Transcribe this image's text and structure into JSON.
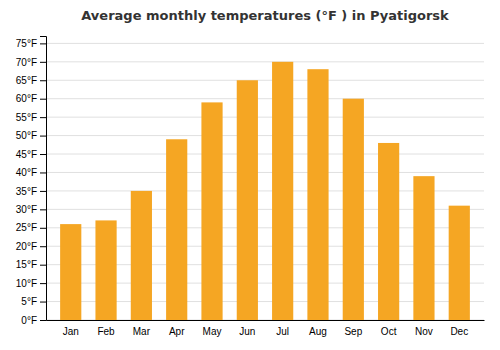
{
  "chart_data": {
    "type": "bar",
    "title": "Average monthly temperatures (°F ) in Pyatigorsk",
    "categories": [
      "Jan",
      "Feb",
      "Mar",
      "Apr",
      "May",
      "Jun",
      "Jul",
      "Aug",
      "Sep",
      "Oct",
      "Nov",
      "Dec"
    ],
    "values": [
      26,
      27,
      35,
      49,
      59,
      65,
      70,
      68,
      60,
      48,
      39,
      31
    ],
    "color": "#F5A623",
    "ylim": [
      0,
      77
    ],
    "yticks": [
      {
        "value": 0,
        "label": "0°F"
      },
      {
        "value": 5,
        "label": "5°F"
      },
      {
        "value": 10,
        "label": "10°F"
      },
      {
        "value": 15,
        "label": "15°F"
      },
      {
        "value": 20,
        "label": "20°F"
      },
      {
        "value": 25,
        "label": "25°F"
      },
      {
        "value": 30,
        "label": "30°F"
      },
      {
        "value": 35,
        "label": "35°F"
      },
      {
        "value": 40,
        "label": "40°F"
      },
      {
        "value": 45,
        "label": "45°F"
      },
      {
        "value": 50,
        "label": "50°F"
      },
      {
        "value": 55,
        "label": "55°F"
      },
      {
        "value": 60,
        "label": "60°F"
      },
      {
        "value": 65,
        "label": "65°F"
      },
      {
        "value": 70,
        "label": "70°F"
      },
      {
        "value": 75,
        "label": "75°F"
      }
    ],
    "grid": true
  }
}
